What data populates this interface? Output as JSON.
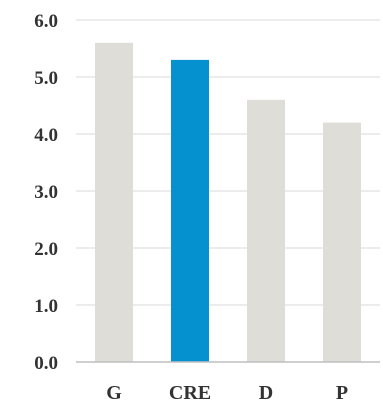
{
  "colors": {
    "bar_default": "#deddd8",
    "bar_highlight": "#0590cf",
    "gridline": "#d9d9d9",
    "axis": "#bfbfbf",
    "text": "#333333"
  },
  "chart_data": {
    "type": "bar",
    "title": "",
    "xlabel": "",
    "ylabel": "",
    "categories": [
      "G",
      "CRE",
      "D",
      "P"
    ],
    "values": [
      5.6,
      5.3,
      4.6,
      4.2
    ],
    "highlight_index": 1,
    "ylim": [
      0,
      6
    ],
    "yticks": [
      0,
      1,
      2,
      3,
      4,
      5,
      6
    ],
    "ytick_labels": [
      "0.0",
      "1.0",
      "2.0",
      "3.0",
      "4.0",
      "5.0",
      "6.0"
    ],
    "grid": true,
    "legend": "none"
  }
}
